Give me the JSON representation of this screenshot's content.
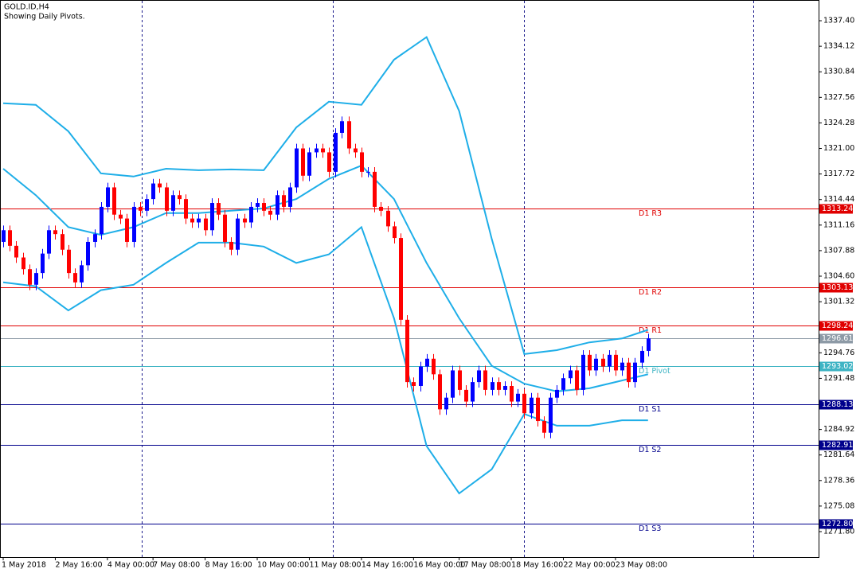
{
  "chart_data": {
    "type": "candlestick",
    "title": "GOLD.ID,H4",
    "subtitle": "Showing Daily Pivots.",
    "bull_color": "#0000ff",
    "bear_color": "#ff0000",
    "band_color": "#1eaee8",
    "ylim": [
      1268.53,
      1340.06
    ],
    "yticks": [
      {
        "value": 1337.4,
        "label": "1337.40"
      },
      {
        "value": 1334.12,
        "label": "1334.12"
      },
      {
        "value": 1330.84,
        "label": "1330.84"
      },
      {
        "value": 1327.56,
        "label": "1327.56"
      },
      {
        "value": 1324.28,
        "label": "1324.28"
      },
      {
        "value": 1321,
        "label": "1321.00"
      },
      {
        "value": 1317.72,
        "label": "1317.72"
      },
      {
        "value": 1314.44,
        "label": "1314.44"
      },
      {
        "value": 1311.16,
        "label": "1311.16"
      },
      {
        "value": 1307.88,
        "label": "1307.88"
      },
      {
        "value": 1304.6,
        "label": "1304.60"
      },
      {
        "value": 1301.32,
        "label": "1301.32"
      },
      {
        "value": 1294.76,
        "label": "1294.76"
      },
      {
        "value": 1291.48,
        "label": "1291.48"
      },
      {
        "value": 1284.92,
        "label": "1284.92"
      },
      {
        "value": 1281.64,
        "label": "1281.64"
      },
      {
        "value": 1278.36,
        "label": "1278.36"
      },
      {
        "value": 1275.08,
        "label": "1275.08"
      },
      {
        "value": 1271.8,
        "label": "1271.80"
      }
    ],
    "categories": [
      "1 May 2018",
      null,
      null,
      null,
      null,
      null,
      null,
      null,
      "2 May 16:00",
      null,
      null,
      null,
      null,
      null,
      null,
      null,
      "4 May 00:00",
      null,
      null,
      null,
      null,
      null,
      null,
      "7 May 08:00",
      null,
      null,
      null,
      null,
      null,
      null,
      null,
      "8 May 16:00",
      null,
      null,
      null,
      null,
      null,
      null,
      null,
      "10 May 00:00",
      null,
      null,
      null,
      null,
      null,
      null,
      null,
      "11 May 08:00",
      null,
      null,
      null,
      null,
      null,
      null,
      null,
      "14 May 16:00",
      null,
      null,
      null,
      null,
      null,
      null,
      null,
      "16 May 00:00",
      null,
      null,
      null,
      null,
      null,
      null,
      "17 May 08:00",
      null,
      null,
      null,
      null,
      null,
      null,
      null,
      "18 May 16:00",
      null,
      null,
      null,
      null,
      null,
      null,
      null,
      "22 May 00:00",
      null,
      null,
      null,
      null,
      null,
      null,
      null,
      "23 May 08:00",
      null,
      null,
      null,
      null,
      null
    ],
    "candles": [
      [
        1309.0,
        1311.1,
        1308.3,
        1310.5
      ],
      [
        1310.5,
        1311.1,
        1307.8,
        1308.5
      ],
      [
        1308.5,
        1309.1,
        1306.3,
        1307.0
      ],
      [
        1307.0,
        1307.6,
        1304.8,
        1305.5
      ],
      [
        1305.5,
        1306.1,
        1302.8,
        1303.5
      ],
      [
        1303.5,
        1305.6,
        1302.8,
        1305.0
      ],
      [
        1305.0,
        1308.1,
        1304.3,
        1307.5
      ],
      [
        1307.5,
        1311.1,
        1306.8,
        1310.5
      ],
      [
        1310.5,
        1311.1,
        1309.3,
        1310.0
      ],
      [
        1310.0,
        1310.6,
        1307.3,
        1308.0
      ],
      [
        1308.0,
        1308.6,
        1304.3,
        1305.0
      ],
      [
        1305.0,
        1305.6,
        1303.1,
        1303.8
      ],
      [
        1303.8,
        1306.6,
        1303.1,
        1306.0
      ],
      [
        1306.0,
        1309.6,
        1305.3,
        1309.0
      ],
      [
        1309.0,
        1310.6,
        1308.3,
        1310.0
      ],
      [
        1310.0,
        1314.1,
        1309.3,
        1313.5
      ],
      [
        1313.5,
        1316.6,
        1312.8,
        1316.0
      ],
      [
        1316.0,
        1316.6,
        1311.8,
        1312.5
      ],
      [
        1312.5,
        1313.1,
        1311.3,
        1312.0
      ],
      [
        1312.0,
        1312.6,
        1308.3,
        1309.0
      ],
      [
        1309.0,
        1314.1,
        1308.3,
        1313.5
      ],
      [
        1313.5,
        1314.1,
        1312.3,
        1313.0
      ],
      [
        1313.0,
        1315.1,
        1312.3,
        1314.5
      ],
      [
        1314.5,
        1317.1,
        1313.8,
        1316.5
      ],
      [
        1316.5,
        1317.1,
        1315.3,
        1316.0
      ],
      [
        1316.0,
        1316.6,
        1312.3,
        1313.0
      ],
      [
        1313.0,
        1315.6,
        1312.3,
        1315.0
      ],
      [
        1315.0,
        1315.6,
        1313.8,
        1314.5
      ],
      [
        1314.5,
        1315.1,
        1311.3,
        1312.0
      ],
      [
        1312.0,
        1312.6,
        1310.8,
        1311.5
      ],
      [
        1311.5,
        1312.6,
        1310.8,
        1312.0
      ],
      [
        1312.0,
        1312.6,
        1309.8,
        1310.5
      ],
      [
        1310.5,
        1314.6,
        1309.8,
        1314.0
      ],
      [
        1314.0,
        1314.6,
        1311.8,
        1312.5
      ],
      [
        1312.5,
        1313.1,
        1308.3,
        1309.0
      ],
      [
        1309.0,
        1309.6,
        1307.3,
        1308.0
      ],
      [
        1308.0,
        1312.6,
        1307.3,
        1312.0
      ],
      [
        1312.0,
        1312.6,
        1310.8,
        1311.5
      ],
      [
        1311.5,
        1314.1,
        1310.8,
        1313.5
      ],
      [
        1313.5,
        1314.6,
        1312.8,
        1314.0
      ],
      [
        1314.0,
        1314.6,
        1312.3,
        1313.0
      ],
      [
        1313.0,
        1313.6,
        1311.8,
        1312.5
      ],
      [
        1312.5,
        1315.6,
        1311.8,
        1315.0
      ],
      [
        1315.0,
        1315.6,
        1312.8,
        1313.5
      ],
      [
        1313.5,
        1316.6,
        1312.8,
        1316.0
      ],
      [
        1316.0,
        1321.6,
        1315.3,
        1321.0
      ],
      [
        1321.0,
        1321.6,
        1316.8,
        1317.5
      ],
      [
        1317.5,
        1321.1,
        1316.8,
        1320.5
      ],
      [
        1320.5,
        1321.6,
        1319.8,
        1321.0
      ],
      [
        1321.0,
        1321.6,
        1319.8,
        1320.5
      ],
      [
        1320.5,
        1321.1,
        1317.3,
        1318.0
      ],
      [
        1318.0,
        1323.6,
        1317.3,
        1323.0
      ],
      [
        1323.0,
        1325.1,
        1322.3,
        1324.5
      ],
      [
        1324.5,
        1325.1,
        1320.3,
        1321.0
      ],
      [
        1321.0,
        1321.6,
        1319.8,
        1320.5
      ],
      [
        1320.5,
        1321.1,
        1317.3,
        1318.0
      ],
      [
        1318.0,
        1318.6,
        1317.3,
        1318.0
      ],
      [
        1318.0,
        1318.6,
        1312.8,
        1313.5
      ],
      [
        1313.5,
        1314.1,
        1312.3,
        1313.0
      ],
      [
        1313.0,
        1313.6,
        1310.3,
        1311.0
      ],
      [
        1311.0,
        1311.6,
        1308.8,
        1309.5
      ],
      [
        1309.5,
        1310.1,
        1298.3,
        1299.0
      ],
      [
        1299.0,
        1299.6,
        1290.3,
        1291.0
      ],
      [
        1291.0,
        1291.6,
        1289.8,
        1290.5
      ],
      [
        1290.5,
        1293.6,
        1289.8,
        1293.0
      ],
      [
        1293.0,
        1294.6,
        1292.3,
        1294.0
      ],
      [
        1294.0,
        1294.6,
        1291.3,
        1292.0
      ],
      [
        1292.0,
        1292.6,
        1286.8,
        1287.5
      ],
      [
        1287.5,
        1289.6,
        1286.8,
        1289.0
      ],
      [
        1289.0,
        1293.1,
        1288.3,
        1292.5
      ],
      [
        1292.5,
        1293.1,
        1289.3,
        1290.0
      ],
      [
        1290.0,
        1290.6,
        1287.8,
        1288.5
      ],
      [
        1288.5,
        1291.6,
        1287.8,
        1291.0
      ],
      [
        1291.0,
        1293.1,
        1290.3,
        1292.5
      ],
      [
        1292.5,
        1293.1,
        1289.3,
        1290.0
      ],
      [
        1290.0,
        1291.6,
        1289.3,
        1291.0
      ],
      [
        1291.0,
        1291.6,
        1289.3,
        1290.0
      ],
      [
        1290.0,
        1291.1,
        1289.3,
        1290.5
      ],
      [
        1290.5,
        1291.1,
        1287.8,
        1288.5
      ],
      [
        1288.5,
        1290.1,
        1287.8,
        1289.5
      ],
      [
        1289.5,
        1290.1,
        1286.3,
        1287.0
      ],
      [
        1287.0,
        1289.6,
        1286.3,
        1289.0
      ],
      [
        1289.0,
        1289.6,
        1285.3,
        1286.0
      ],
      [
        1286.0,
        1286.6,
        1283.8,
        1284.5
      ],
      [
        1284.5,
        1289.6,
        1283.8,
        1289.0
      ],
      [
        1289.0,
        1290.6,
        1288.3,
        1290.0
      ],
      [
        1290.0,
        1292.1,
        1289.3,
        1291.5
      ],
      [
        1291.5,
        1293.1,
        1290.8,
        1292.5
      ],
      [
        1292.5,
        1293.1,
        1289.3,
        1290.0
      ],
      [
        1290.0,
        1295.1,
        1289.3,
        1294.5
      ],
      [
        1294.5,
        1295.1,
        1291.8,
        1292.5
      ],
      [
        1292.5,
        1294.6,
        1291.8,
        1294.0
      ],
      [
        1294.0,
        1294.6,
        1292.3,
        1293.0
      ],
      [
        1293.0,
        1295.1,
        1292.3,
        1294.5
      ],
      [
        1294.5,
        1295.1,
        1291.8,
        1292.5
      ],
      [
        1292.5,
        1294.1,
        1291.8,
        1293.5
      ],
      [
        1293.5,
        1294.1,
        1290.3,
        1291.0
      ],
      [
        1291.0,
        1294.1,
        1290.3,
        1293.5
      ],
      [
        1293.5,
        1295.6,
        1292.8,
        1295.0
      ],
      [
        1295.0,
        1297.2,
        1294.3,
        1296.61
      ]
    ],
    "bands": [
      {
        "x": [
          0,
          5,
          10,
          15,
          20,
          25,
          30,
          35,
          40,
          45,
          50,
          55,
          60,
          65,
          70,
          75,
          80,
          85,
          90,
          95,
          99
        ],
        "values": [
          1326.8,
          1326.6,
          1323.2,
          1317.8,
          1317.4,
          1318.4,
          1318.2,
          1318.3,
          1318.2,
          1323.7,
          1327.0,
          1326.6,
          1332.4,
          1335.3,
          1325.8,
          1309.4,
          1294.6,
          1295.1,
          1296.1,
          1296.6,
          1297.7
        ]
      },
      {
        "x": [
          0,
          5,
          10,
          15,
          20,
          25,
          30,
          35,
          40,
          45,
          50,
          55,
          60,
          65,
          70,
          75,
          80,
          85,
          90,
          95,
          99
        ],
        "values": [
          1318.4,
          1315.0,
          1310.9,
          1309.9,
          1310.9,
          1312.7,
          1312.7,
          1313.0,
          1313.3,
          1314.5,
          1317.1,
          1318.8,
          1314.5,
          1306.3,
          1299.2,
          1293.1,
          1290.8,
          1289.8,
          1290.2,
          1291.2,
          1292.0
        ]
      },
      {
        "x": [
          0,
          5,
          10,
          15,
          20,
          25,
          30,
          35,
          40,
          45,
          50,
          55,
          60,
          65,
          70,
          75,
          80,
          85,
          90,
          95,
          99
        ],
        "values": [
          1303.8,
          1303.3,
          1300.2,
          1302.8,
          1303.5,
          1306.3,
          1308.9,
          1308.9,
          1308.4,
          1306.3,
          1307.4,
          1310.9,
          1299.2,
          1282.8,
          1276.7,
          1279.8,
          1286.9,
          1285.4,
          1285.4,
          1286.1,
          1286.1
        ]
      }
    ],
    "pivots": [
      {
        "name": "D1 R3",
        "value": 1313.24,
        "color": "#e00000"
      },
      {
        "name": "D1 R2",
        "value": 1303.13,
        "color": "#e00000"
      },
      {
        "name": "D1 R1",
        "value": 1298.24,
        "color": "#e00000"
      },
      {
        "name": "D1 Pivot",
        "value": 1293.02,
        "color": "#3fb4c4"
      },
      {
        "name": "D1 S1",
        "value": 1288.13,
        "color": "#00008c"
      },
      {
        "name": "D1 S2",
        "value": 1282.91,
        "color": "#00008c"
      },
      {
        "name": "D1 S3",
        "value": 1272.8,
        "value_label": "1272.80",
        "color": "#00008c"
      }
    ],
    "last_price_color": "#8d9aa6"
  }
}
